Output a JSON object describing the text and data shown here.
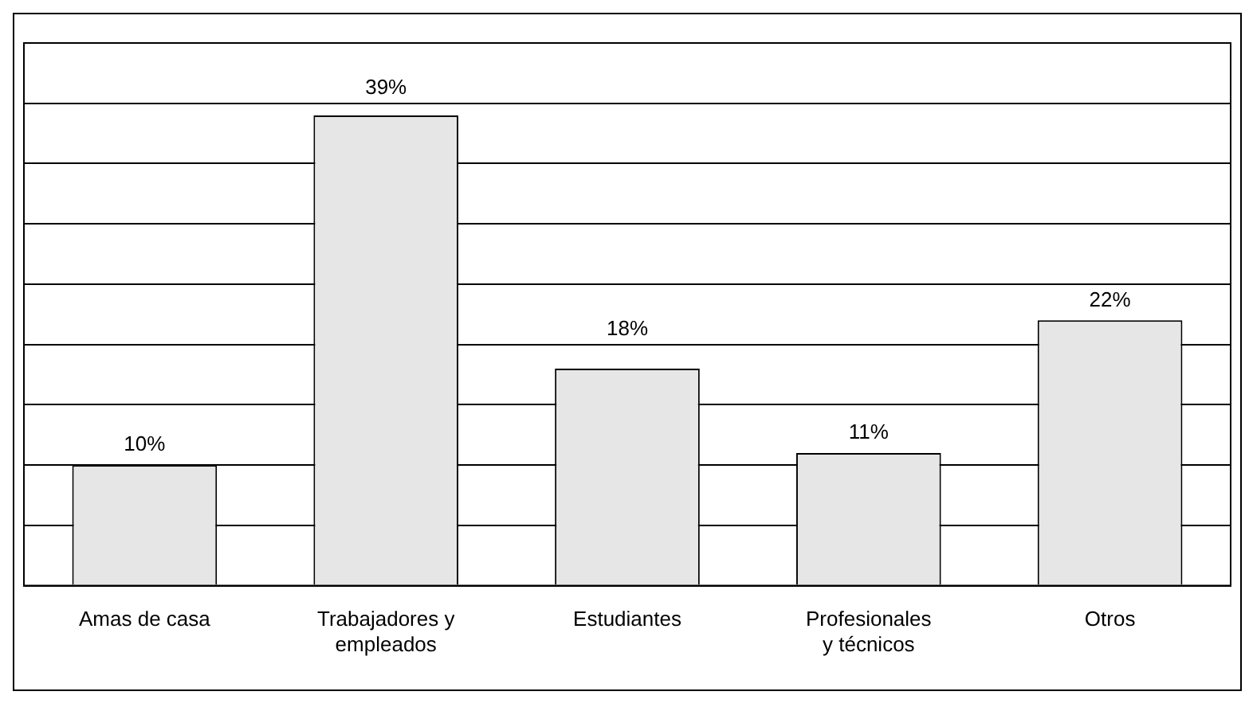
{
  "chart_data": {
    "type": "bar",
    "categories": [
      "Amas de casa",
      "Trabajadores y empleados",
      "Estudiantes",
      "Profesionales y técnicos",
      "Otros"
    ],
    "values": [
      10,
      39,
      18,
      11,
      22
    ],
    "value_labels": [
      "10%",
      "39%",
      "18%",
      "11%",
      "22%"
    ],
    "color": "#e6e6e6",
    "ylim": [
      0,
      45
    ],
    "yticks": [
      {
        "value": 0,
        "label": null
      },
      {
        "value": 5,
        "label": null
      },
      {
        "value": 10,
        "label": null
      },
      {
        "value": 15,
        "label": null
      },
      {
        "value": 20,
        "label": null
      },
      {
        "value": 25,
        "label": null
      },
      {
        "value": 30,
        "label": null
      },
      {
        "value": 35,
        "label": null
      },
      {
        "value": 40,
        "label": null
      }
    ],
    "grid": "y",
    "legend": false,
    "tick_labels": "x"
  }
}
